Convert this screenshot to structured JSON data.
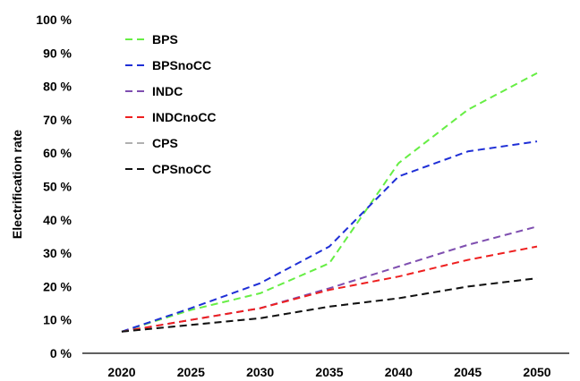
{
  "chart_data": {
    "type": "line",
    "x": [
      2020,
      2025,
      2030,
      2035,
      2040,
      2045,
      2050
    ],
    "x_tick_labels": [
      "2020",
      "2025",
      "2030",
      "2035",
      "2040",
      "2045",
      "2050"
    ],
    "ylabel": "Electrification rate",
    "ylim": [
      0,
      100
    ],
    "y_tick_labels": [
      "0 %",
      "10 %",
      "20 %",
      "30 %",
      "40 %",
      "50 %",
      "60 %",
      "70 %",
      "80 %",
      "90 %",
      "100 %"
    ],
    "y_unit": "%",
    "grid": false,
    "legend_position": "top-left",
    "line_style": "dashed",
    "series": [
      {
        "name": "BPS",
        "color": "#66ee44",
        "values": [
          6.5,
          13,
          18,
          27,
          57,
          73,
          84
        ]
      },
      {
        "name": "BPSnoCC",
        "color": "#1f2fd6",
        "values": [
          6.5,
          13.5,
          21,
          32,
          53,
          60.5,
          63.5
        ]
      },
      {
        "name": "INDC",
        "color": "#7f4fb0",
        "values": [
          6.5,
          10,
          13.5,
          19.5,
          26,
          32.5,
          38
        ]
      },
      {
        "name": "INDCnoCC",
        "color": "#ee1f1f",
        "values": [
          6.5,
          10,
          13.5,
          19,
          23,
          28,
          32
        ]
      },
      {
        "name": "CPS",
        "color": "#b0b0b0",
        "values": [
          6.5,
          8.5,
          10.5,
          14,
          16.5,
          20,
          22.5
        ]
      },
      {
        "name": "CPSnoCC",
        "color": "#111111",
        "values": [
          6.5,
          8.5,
          10.5,
          14,
          16.5,
          20,
          22.5
        ]
      }
    ]
  }
}
